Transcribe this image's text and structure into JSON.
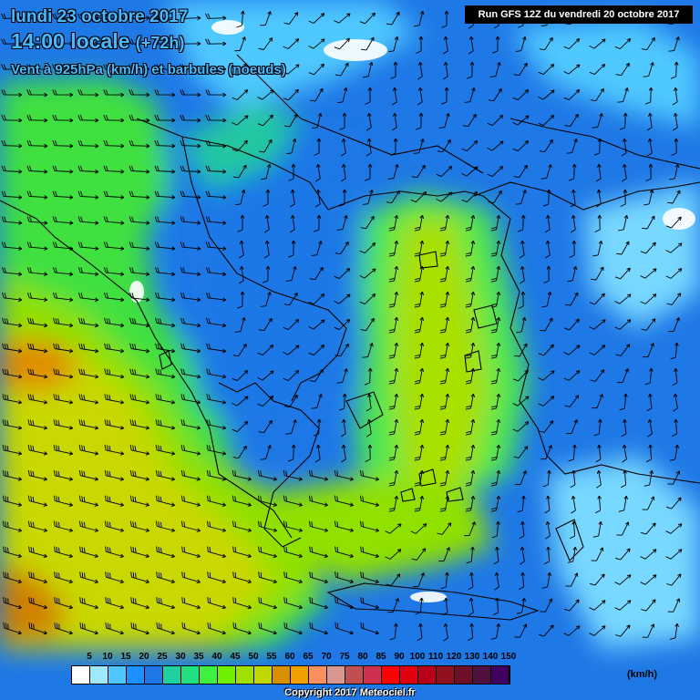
{
  "header": {
    "date_line": "lundi 23 octobre 2017",
    "time_line": "14:00 locale",
    "offset": "(+72h)",
    "variable_line": "Vent à 925hPa (km/h) et barbules (noeuds)",
    "run_info": "Run GFS 12Z du vendredi 20 octobre 2017"
  },
  "legend": {
    "ticks": [
      "5",
      "10",
      "15",
      "20",
      "25",
      "30",
      "35",
      "40",
      "45",
      "50",
      "55",
      "60",
      "65",
      "70",
      "75",
      "80",
      "85",
      "90",
      "100",
      "110",
      "120",
      "130",
      "140",
      "150"
    ],
    "colors": [
      "#ffffff",
      "#a0e8ff",
      "#50c8ff",
      "#1e90ff",
      "#1e78e6",
      "#20d0a0",
      "#20e080",
      "#40f040",
      "#70f000",
      "#a0e000",
      "#c0d800",
      "#d89000",
      "#f0a000",
      "#f89060",
      "#d89890",
      "#c05050",
      "#d03050",
      "#ff0000",
      "#e00010",
      "#b80018",
      "#901020",
      "#701028",
      "#501040",
      "#400060"
    ],
    "unit": "(km/h)"
  },
  "footer": {
    "copyright": "Copyright 2017 Meteociel.fr"
  },
  "map_style": {
    "base_color": "#1e78e6",
    "land_border_color": "#000000",
    "arrow_color": "#000000"
  }
}
